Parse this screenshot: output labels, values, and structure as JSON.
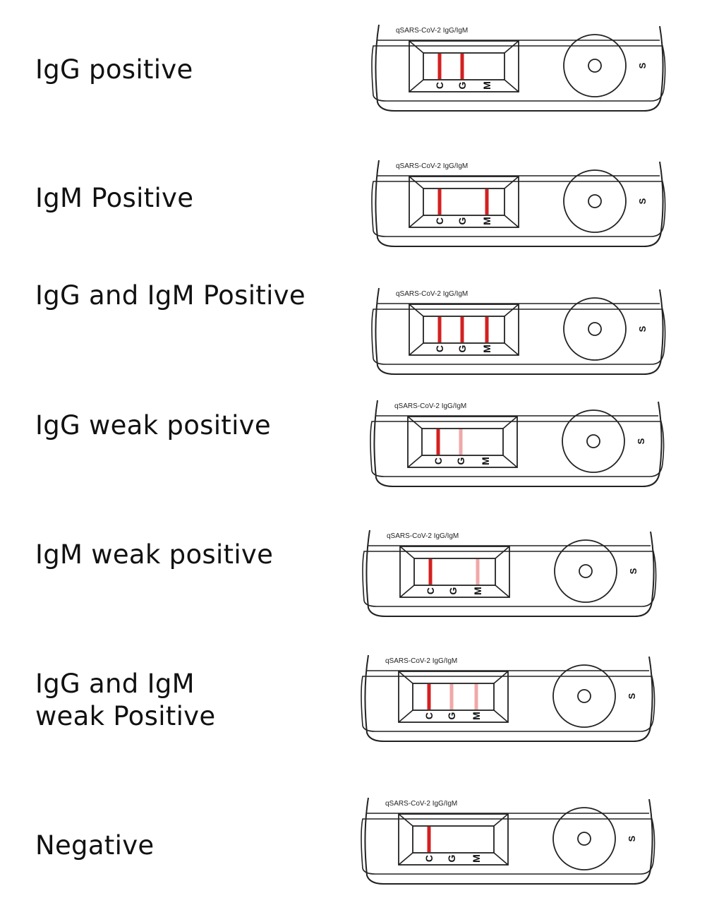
{
  "device_title": "qSARS-CoV-2 IgG/IgM",
  "line_letters": [
    "C",
    "G",
    "M"
  ],
  "sample_mark": "S",
  "colors": {
    "strong": "#d42020",
    "weak": "#f0a8a8",
    "outline": "#222222"
  },
  "results": [
    {
      "label": "IgG positive",
      "lines": {
        "C": "strong",
        "G": "strong",
        "M": "none"
      }
    },
    {
      "label": "IgM Positive",
      "lines": {
        "C": "strong",
        "G": "none",
        "M": "strong"
      }
    },
    {
      "label": "IgG and IgM Positive",
      "lines": {
        "C": "strong",
        "G": "strong",
        "M": "strong"
      }
    },
    {
      "label": "IgG weak positive",
      "lines": {
        "C": "strong",
        "G": "weak",
        "M": "none"
      }
    },
    {
      "label": "IgM weak positive",
      "lines": {
        "C": "strong",
        "G": "none",
        "M": "weak"
      }
    },
    {
      "label": "IgG and IgM\nweak Positive",
      "lines": {
        "C": "strong",
        "G": "weak",
        "M": "weak"
      }
    },
    {
      "label": "Negative",
      "lines": {
        "C": "strong",
        "G": "none",
        "M": "none"
      }
    }
  ]
}
